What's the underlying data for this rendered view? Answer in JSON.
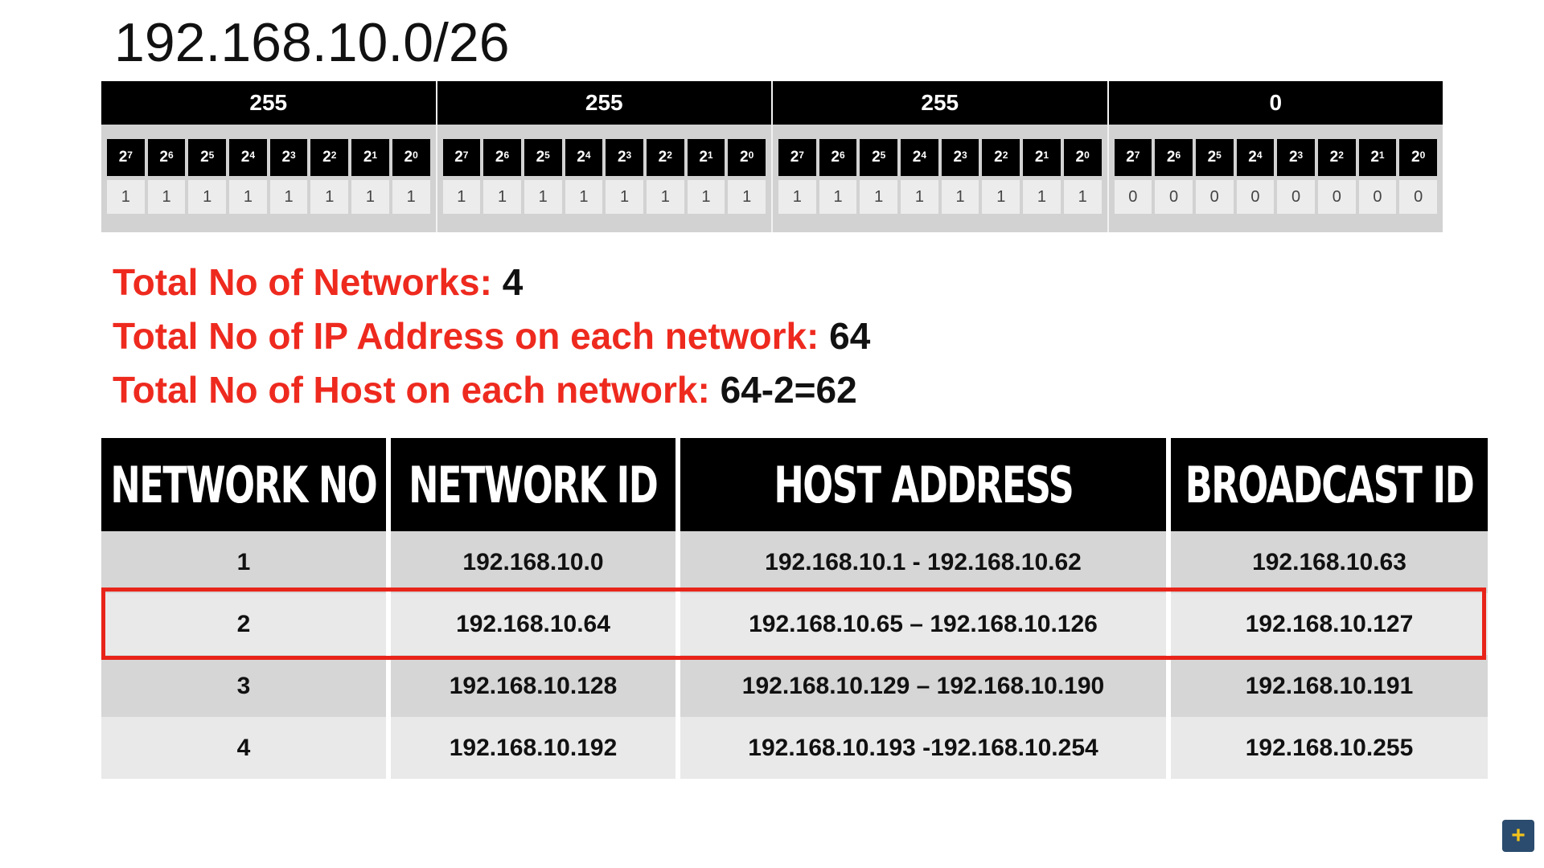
{
  "title": "192.168.10.0/26",
  "octets": [
    {
      "value": "255",
      "bits": [
        "1",
        "1",
        "1",
        "1",
        "1",
        "1",
        "1",
        "1"
      ]
    },
    {
      "value": "255",
      "bits": [
        "1",
        "1",
        "1",
        "1",
        "1",
        "1",
        "1",
        "1"
      ]
    },
    {
      "value": "255",
      "bits": [
        "1",
        "1",
        "1",
        "1",
        "1",
        "1",
        "1",
        "1"
      ]
    },
    {
      "value": "0",
      "bits": [
        "0",
        "0",
        "0",
        "0",
        "0",
        "0",
        "0",
        "0"
      ]
    }
  ],
  "powers": {
    "base": "2",
    "exps": [
      "7",
      "6",
      "5",
      "4",
      "3",
      "2",
      "1",
      "0"
    ]
  },
  "stats": [
    {
      "label": "Total No of Networks:",
      "value": "4"
    },
    {
      "label": "Total No of IP Address on each network:",
      "value": "64"
    },
    {
      "label": "Total No of Host on each network:",
      "value": "64-2=62"
    }
  ],
  "table": {
    "headers": [
      "NETWORK NO",
      "NETWORK ID",
      "HOST ADDRESS",
      "BROADCAST ID"
    ],
    "rows": [
      [
        "1",
        "192.168.10.0",
        "192.168.10.1 - 192.168.10.62",
        "192.168.10.63"
      ],
      [
        "2",
        "192.168.10.64",
        "192.168.10.65 – 192.168.10.126",
        "192.168.10.127"
      ],
      [
        "3",
        "192.168.10.128",
        "192.168.10.129 – 192.168.10.190",
        "192.168.10.191"
      ],
      [
        "4",
        "192.168.10.192",
        "192.168.10.193 -192.168.10.254",
        "192.168.10.255"
      ]
    ],
    "highlighted_row": 2,
    "highlight_color": "#e8241a"
  },
  "colors": {
    "accent_red": "#ee2a1f",
    "header_black": "#000000"
  },
  "logo_icon": "networking-logo-icon"
}
